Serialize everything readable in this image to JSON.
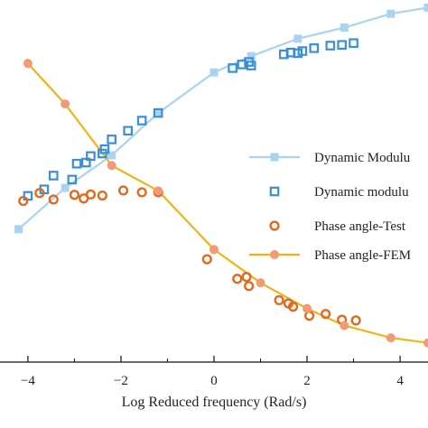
{
  "chart_data": {
    "type": "scatter",
    "title": "",
    "xlabel": "Log Reduced frequency (Rad/s)",
    "xlim": [
      -4.6,
      4.6
    ],
    "xticks": [
      "−4",
      "−2",
      "0",
      "2",
      "4"
    ],
    "xtick_values": [
      -4,
      -2,
      0,
      2,
      4
    ],
    "ylim": [
      0,
      100
    ],
    "grid": false,
    "legend": {
      "placement": "right",
      "entries": [
        {
          "label": "Dynamic Modulu",
          "series": "dynamic_modulus_fem"
        },
        {
          "label": "Dynamic modulu",
          "series": "dynamic_modulus_test"
        },
        {
          "label": "Phase angle-Test",
          "series": "phase_angle_test"
        },
        {
          "label": "Phase angle-FEM",
          "series": "phase_angle_fem"
        }
      ]
    },
    "colors": {
      "modulus_fem": "#a9d4f0",
      "modulus_test": "#3b8fd8",
      "phase_test": "#e06a1e",
      "phase_fem_line": "#f2b316",
      "phase_fem_marker": "#f29a72"
    },
    "series": [
      {
        "key": "dynamic_modulus_fem",
        "marker": "filled-square",
        "line": true,
        "points": [
          [
            -4.2,
            36.7
          ],
          [
            -3.2,
            48.1
          ],
          [
            -2.2,
            57.1
          ],
          [
            -1.2,
            68.8
          ],
          [
            0,
            80.0
          ],
          [
            0.8,
            84.5
          ],
          [
            1.8,
            89.3
          ],
          [
            2.8,
            92.4
          ],
          [
            3.8,
            96.2
          ],
          [
            4.6,
            97.9
          ]
        ]
      },
      {
        "key": "dynamic_modulus_test",
        "marker": "open-square",
        "line": false,
        "points": [
          [
            -4.0,
            45.9
          ],
          [
            -3.65,
            47.7
          ],
          [
            -3.45,
            51.5
          ],
          [
            -3.05,
            50.4
          ],
          [
            -2.95,
            54.8
          ],
          [
            -2.75,
            55.1
          ],
          [
            -2.65,
            56.9
          ],
          [
            -2.4,
            57.6
          ],
          [
            -2.35,
            58.8
          ],
          [
            -2.2,
            61.5
          ],
          [
            -1.85,
            63.9
          ],
          [
            -1.55,
            66.7
          ],
          [
            -1.2,
            68.8
          ],
          [
            0.4,
            81.2
          ],
          [
            0.6,
            82.2
          ],
          [
            0.75,
            82.9
          ],
          [
            0.8,
            81.9
          ],
          [
            1.5,
            85.0
          ],
          [
            1.65,
            85.5
          ],
          [
            1.8,
            85.3
          ],
          [
            1.9,
            85.9
          ],
          [
            2.15,
            86.7
          ],
          [
            2.5,
            87.4
          ],
          [
            2.75,
            87.6
          ],
          [
            3.0,
            88.1
          ]
        ]
      },
      {
        "key": "phase_angle_test",
        "marker": "open-circle",
        "line": false,
        "points": [
          [
            -4.1,
            44.5
          ],
          [
            -3.75,
            46.7
          ],
          [
            -3.45,
            44.9
          ],
          [
            -3.0,
            46.2
          ],
          [
            -2.8,
            45.2
          ],
          [
            -2.65,
            46.3
          ],
          [
            -2.4,
            46.0
          ],
          [
            -1.95,
            47.4
          ],
          [
            -1.55,
            46.9
          ],
          [
            -1.2,
            46.9
          ],
          [
            -0.15,
            28.4
          ],
          [
            0.5,
            23.0
          ],
          [
            0.7,
            23.5
          ],
          [
            0.75,
            21.0
          ],
          [
            1.4,
            17.1
          ],
          [
            1.6,
            16.2
          ],
          [
            1.7,
            15.3
          ],
          [
            2.05,
            12.8
          ],
          [
            2.4,
            13.3
          ],
          [
            2.75,
            11.7
          ],
          [
            3.05,
            11.5
          ]
        ]
      },
      {
        "key": "phase_angle_fem",
        "marker": "filled-circle",
        "line": true,
        "points": [
          [
            -4.0,
            82.5
          ],
          [
            -3.2,
            71.3
          ],
          [
            -2.2,
            54.3
          ],
          [
            -1.2,
            47.3
          ],
          [
            0,
            31.1
          ],
          [
            1.0,
            21.9
          ],
          [
            2.0,
            14.8
          ],
          [
            2.8,
            10.1
          ],
          [
            3.8,
            6.7
          ],
          [
            4.6,
            5.3
          ]
        ]
      }
    ]
  }
}
